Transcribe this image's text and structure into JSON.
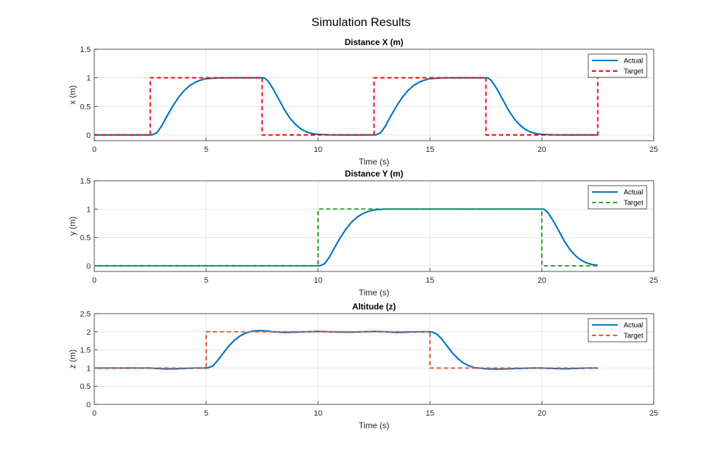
{
  "figure": {
    "title": "Simulation Results"
  },
  "chart_data": [
    {
      "type": "line",
      "title": "Distance X (m)",
      "xlabel": "Time (s)",
      "ylabel": "x (m)",
      "xlim": [
        0,
        25
      ],
      "ylim": [
        -0.1,
        1.5
      ],
      "xticks": [
        0,
        5,
        10,
        15,
        20,
        25
      ],
      "yticks": [
        0,
        0.5,
        1,
        1.5
      ],
      "xtick_labels": [
        "0",
        "5",
        "10",
        "15",
        "20",
        "25"
      ],
      "ytick_labels": [
        "0",
        "0.5",
        "1",
        "1.5"
      ],
      "grid": true,
      "legend_location": "top-right",
      "series": [
        {
          "name": "Actual",
          "color": "#0072BD",
          "style": "solid",
          "points": [
            [
              0,
              0
            ],
            [
              2.5,
              0
            ],
            [
              2.6,
              0.003
            ],
            [
              2.8,
              0.04
            ],
            [
              3.0,
              0.15
            ],
            [
              3.25,
              0.33
            ],
            [
              3.5,
              0.5
            ],
            [
              3.75,
              0.65
            ],
            [
              4.0,
              0.77
            ],
            [
              4.25,
              0.86
            ],
            [
              4.5,
              0.92
            ],
            [
              4.75,
              0.96
            ],
            [
              5.0,
              0.985
            ],
            [
              5.5,
              0.998
            ],
            [
              6.0,
              1.0
            ],
            [
              7.5,
              1.0
            ],
            [
              7.6,
              0.997
            ],
            [
              7.75,
              0.95
            ],
            [
              8.0,
              0.8
            ],
            [
              8.25,
              0.62
            ],
            [
              8.5,
              0.44
            ],
            [
              8.75,
              0.29
            ],
            [
              9.0,
              0.18
            ],
            [
              9.25,
              0.1
            ],
            [
              9.5,
              0.05
            ],
            [
              9.75,
              0.022
            ],
            [
              10.0,
              0.01
            ],
            [
              10.5,
              0.002
            ],
            [
              11.0,
              0.0
            ],
            [
              12.5,
              0.0
            ],
            [
              12.6,
              0.003
            ],
            [
              12.8,
              0.04
            ],
            [
              13.0,
              0.15
            ],
            [
              13.25,
              0.33
            ],
            [
              13.5,
              0.5
            ],
            [
              13.75,
              0.65
            ],
            [
              14.0,
              0.77
            ],
            [
              14.25,
              0.86
            ],
            [
              14.5,
              0.92
            ],
            [
              14.75,
              0.96
            ],
            [
              15.0,
              0.985
            ],
            [
              15.5,
              0.998
            ],
            [
              16.0,
              1.0
            ],
            [
              17.5,
              1.0
            ],
            [
              17.6,
              0.997
            ],
            [
              17.75,
              0.95
            ],
            [
              18.0,
              0.8
            ],
            [
              18.25,
              0.62
            ],
            [
              18.5,
              0.44
            ],
            [
              18.75,
              0.29
            ],
            [
              19.0,
              0.18
            ],
            [
              19.25,
              0.1
            ],
            [
              19.5,
              0.05
            ],
            [
              19.75,
              0.022
            ],
            [
              20.0,
              0.01
            ],
            [
              20.5,
              0.002
            ],
            [
              21.0,
              0.0
            ],
            [
              22.5,
              0.0
            ]
          ]
        },
        {
          "name": "Target",
          "color": "#FF0000",
          "style": "dashed",
          "points": [
            [
              0,
              0
            ],
            [
              2.5,
              0
            ],
            [
              2.5,
              1
            ],
            [
              7.5,
              1
            ],
            [
              7.5,
              0
            ],
            [
              12.5,
              0
            ],
            [
              12.5,
              1
            ],
            [
              17.5,
              1
            ],
            [
              17.5,
              0
            ],
            [
              22.5,
              0
            ],
            [
              22.5,
              1
            ]
          ]
        }
      ]
    },
    {
      "type": "line",
      "title": "Distance Y (m)",
      "xlabel": "Time (s)",
      "ylabel": "y (m)",
      "xlim": [
        0,
        25
      ],
      "ylim": [
        -0.1,
        1.5
      ],
      "xticks": [
        0,
        5,
        10,
        15,
        20,
        25
      ],
      "yticks": [
        0,
        0.5,
        1,
        1.5
      ],
      "xtick_labels": [
        "0",
        "5",
        "10",
        "15",
        "20",
        "25"
      ],
      "ytick_labels": [
        "0",
        "0.5",
        "1",
        "1.5"
      ],
      "grid": true,
      "legend_location": "top-right",
      "series": [
        {
          "name": "Actual",
          "color": "#0072BD",
          "style": "solid",
          "points": [
            [
              0,
              0
            ],
            [
              10.0,
              0
            ],
            [
              10.1,
              0.003
            ],
            [
              10.3,
              0.04
            ],
            [
              10.5,
              0.15
            ],
            [
              10.75,
              0.33
            ],
            [
              11.0,
              0.5
            ],
            [
              11.25,
              0.65
            ],
            [
              11.5,
              0.77
            ],
            [
              11.75,
              0.86
            ],
            [
              12.0,
              0.92
            ],
            [
              12.25,
              0.96
            ],
            [
              12.5,
              0.985
            ],
            [
              13.0,
              1.0
            ],
            [
              20.0,
              1.0
            ],
            [
              20.1,
              0.997
            ],
            [
              20.25,
              0.95
            ],
            [
              20.5,
              0.8
            ],
            [
              20.75,
              0.62
            ],
            [
              21.0,
              0.44
            ],
            [
              21.25,
              0.29
            ],
            [
              21.5,
              0.18
            ],
            [
              21.75,
              0.1
            ],
            [
              22.0,
              0.05
            ],
            [
              22.25,
              0.022
            ],
            [
              22.5,
              0.01
            ]
          ]
        },
        {
          "name": "Target",
          "color": "#2CA02C",
          "style": "dashed",
          "points": [
            [
              0,
              0
            ],
            [
              10,
              0
            ],
            [
              10,
              1
            ],
            [
              20,
              1
            ],
            [
              20,
              0
            ],
            [
              22.5,
              0
            ]
          ]
        }
      ]
    },
    {
      "type": "line",
      "title": "Altitude (z)",
      "xlabel": "Time (s)",
      "ylabel": "z (m)",
      "xlim": [
        0,
        25
      ],
      "ylim": [
        0,
        2.5
      ],
      "xticks": [
        0,
        5,
        10,
        15,
        20,
        25
      ],
      "yticks": [
        0,
        0.5,
        1,
        1.5,
        2,
        2.5
      ],
      "xtick_labels": [
        "0",
        "5",
        "10",
        "15",
        "20",
        "25"
      ],
      "ytick_labels": [
        "0",
        "0.5",
        "1",
        "1.5",
        "2",
        "2.5"
      ],
      "grid": true,
      "legend_location": "top-right",
      "series": [
        {
          "name": "Actual",
          "color": "#0072BD",
          "style": "solid",
          "points": [
            [
              0,
              1.0
            ],
            [
              2.5,
              1.0
            ],
            [
              2.8,
              0.99
            ],
            [
              3.2,
              0.975
            ],
            [
              3.6,
              0.98
            ],
            [
              4.0,
              0.99
            ],
            [
              4.5,
              1.0
            ],
            [
              5.0,
              1.0
            ],
            [
              5.1,
              1.01
            ],
            [
              5.3,
              1.06
            ],
            [
              5.5,
              1.2
            ],
            [
              5.75,
              1.4
            ],
            [
              6.0,
              1.6
            ],
            [
              6.25,
              1.76
            ],
            [
              6.5,
              1.88
            ],
            [
              6.75,
              1.96
            ],
            [
              7.0,
              2.01
            ],
            [
              7.25,
              2.03
            ],
            [
              7.5,
              2.03
            ],
            [
              7.75,
              2.02
            ],
            [
              8.0,
              2.0
            ],
            [
              8.5,
              1.98
            ],
            [
              9.0,
              1.99
            ],
            [
              9.5,
              2.0
            ],
            [
              10.0,
              2.01
            ],
            [
              10.5,
              2.0
            ],
            [
              11.0,
              1.99
            ],
            [
              11.5,
              1.99
            ],
            [
              12.0,
              2.0
            ],
            [
              12.5,
              2.01
            ],
            [
              13.0,
              2.0
            ],
            [
              13.5,
              1.98
            ],
            [
              14.0,
              1.99
            ],
            [
              14.5,
              2.0
            ],
            [
              15.0,
              2.0
            ],
            [
              15.1,
              1.99
            ],
            [
              15.3,
              1.94
            ],
            [
              15.5,
              1.82
            ],
            [
              15.75,
              1.62
            ],
            [
              16.0,
              1.42
            ],
            [
              16.25,
              1.26
            ],
            [
              16.5,
              1.14
            ],
            [
              16.75,
              1.06
            ],
            [
              17.0,
              1.01
            ],
            [
              17.5,
              0.98
            ],
            [
              18.0,
              0.97
            ],
            [
              18.5,
              0.98
            ],
            [
              19.0,
              0.99
            ],
            [
              19.5,
              1.0
            ],
            [
              20.0,
              1.0
            ],
            [
              20.5,
              0.99
            ],
            [
              21.0,
              0.98
            ],
            [
              21.5,
              0.99
            ],
            [
              22.0,
              1.0
            ],
            [
              22.5,
              1.0
            ]
          ]
        },
        {
          "name": "Target",
          "color": "#E8543A",
          "style": "dashed",
          "points": [
            [
              0,
              1
            ],
            [
              5,
              1
            ],
            [
              5,
              2
            ],
            [
              15,
              2
            ],
            [
              15,
              1
            ],
            [
              22.5,
              1
            ]
          ]
        }
      ]
    }
  ]
}
